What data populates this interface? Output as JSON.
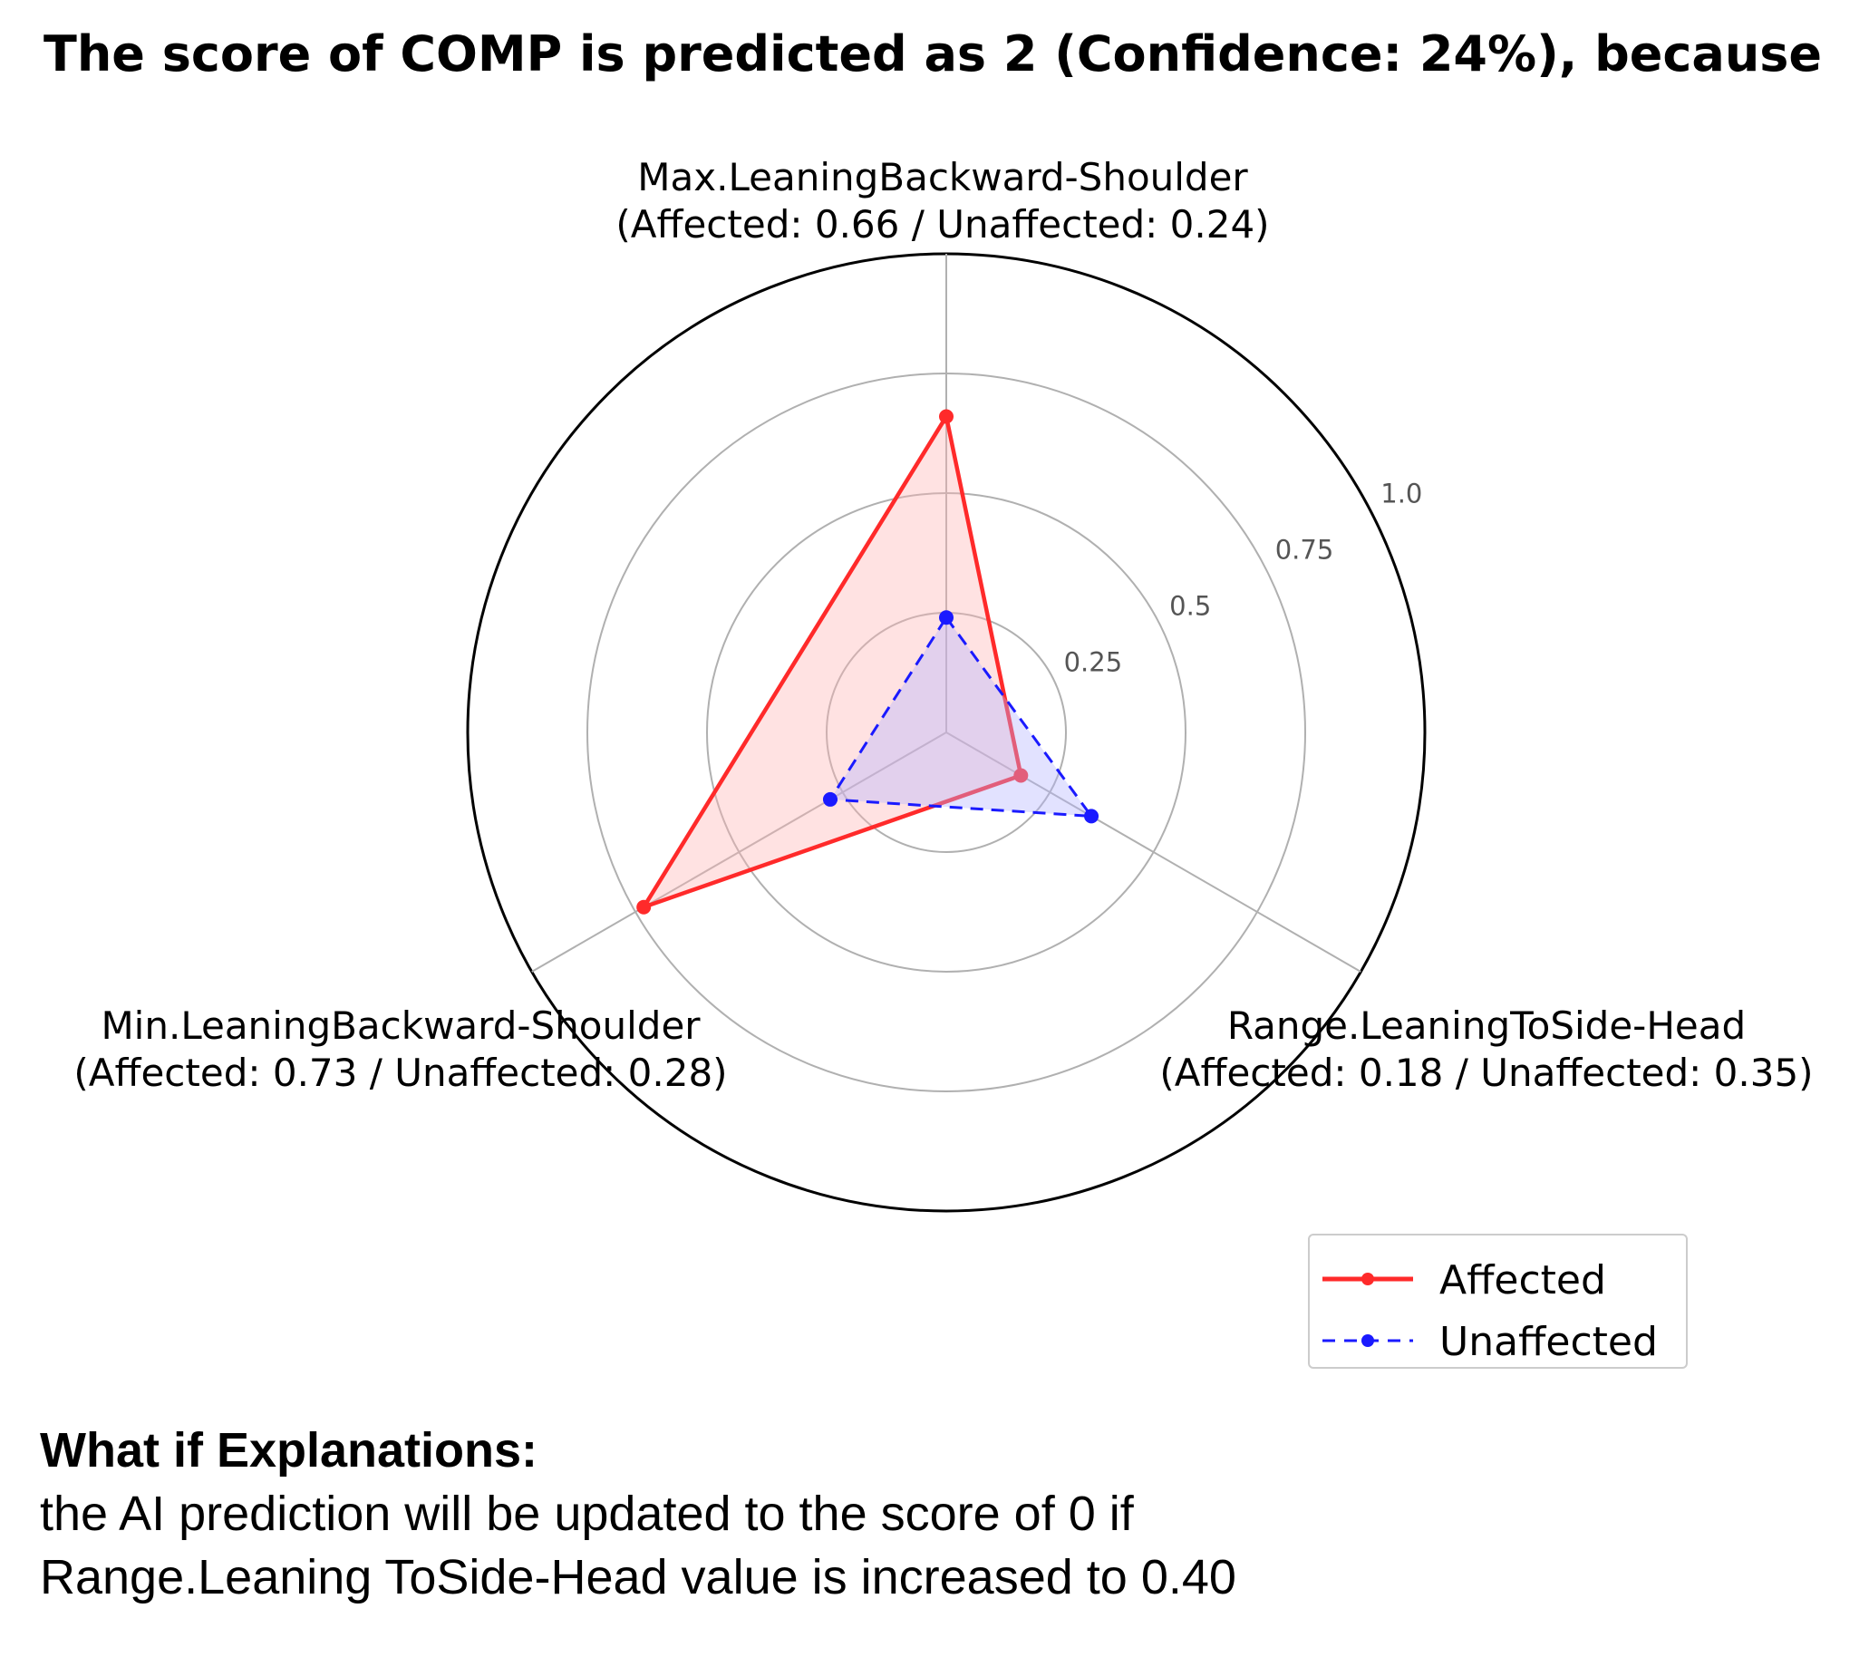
{
  "title": "The score of COMP is predicted as 2 (Confidence: 24%), because",
  "chart_data": {
    "type": "radar",
    "axes": [
      {
        "name": "Max.LeaningBackward-Shoulder",
        "detail": "(Affected: 0.66 / Unaffected: 0.24)"
      },
      {
        "name": "Range.LeaningToSide-Head",
        "detail": "(Affected: 0.18 / Unaffected: 0.35)"
      },
      {
        "name": "Min.LeaningBackward-Shoulder",
        "detail": "(Affected: 0.73 / Unaffected: 0.28)"
      }
    ],
    "radial_ticks": [
      "0.25",
      "0.5",
      "0.75",
      "1.0"
    ],
    "radial_tick_values": [
      0.25,
      0.5,
      0.75,
      1.0
    ],
    "rlim": [
      0,
      1.0
    ],
    "series": [
      {
        "name": "Affected",
        "values": [
          0.66,
          0.18,
          0.73
        ],
        "color": "#ff2a2a",
        "fill": "#ffb3b3",
        "style": "solid"
      },
      {
        "name": "Unaffected",
        "values": [
          0.24,
          0.35,
          0.28
        ],
        "color": "#1a1aff",
        "fill": "#b3b3ff",
        "style": "dashed"
      }
    ],
    "legend_position": "bottom-right",
    "grid": true
  },
  "legend": {
    "affected": "Affected",
    "unaffected": "Unaffected"
  },
  "explanation": {
    "heading": "What if Explanations:",
    "line1": "the AI prediction will be updated to the score of 0 if",
    "line2": "Range.Leaning ToSide-Head value is increased to 0.40"
  }
}
